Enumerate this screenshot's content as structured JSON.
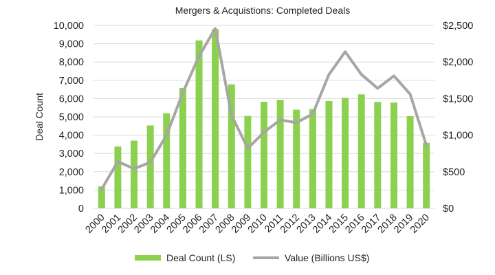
{
  "chart_data": {
    "type": "bar",
    "title": "Mergers & Acquistions: Completed Deals",
    "ylabel": "Deal Count",
    "y2label": "",
    "xlabel": "",
    "categories": [
      "2000",
      "2001",
      "2002",
      "2003",
      "2004",
      "2005",
      "2006",
      "2007",
      "2008",
      "2009",
      "2010",
      "2011",
      "2012",
      "2013",
      "2014",
      "2015",
      "2016",
      "2017",
      "2018",
      "2019",
      "2020"
    ],
    "ylim": [
      0,
      10000
    ],
    "yticks": [
      0,
      1000,
      2000,
      3000,
      4000,
      5000,
      6000,
      7000,
      8000,
      9000,
      10000
    ],
    "ytick_labels": [
      "0",
      "1,000",
      "2,000",
      "3,000",
      "4,000",
      "5,000",
      "6,000",
      "7,000",
      "8,000",
      "9,000",
      "10,000"
    ],
    "y2lim": [
      0,
      2500
    ],
    "y2ticks": [
      0,
      500,
      1000,
      1500,
      2000,
      2500
    ],
    "y2tick_labels": [
      "$0",
      "$500",
      "$1,000",
      "$1,500",
      "$2,000",
      "$2,500"
    ],
    "grid": true,
    "legend_position": "bottom",
    "series": [
      {
        "name": "Deal Count (LS)",
        "type": "bar",
        "axis": "left",
        "color": "#8cd04f",
        "values": [
          1200,
          3380,
          3700,
          4530,
          5200,
          6580,
          9180,
          9800,
          6780,
          5050,
          5820,
          5930,
          5390,
          5420,
          5870,
          6040,
          6230,
          5820,
          5780,
          5040,
          3580
        ]
      },
      {
        "name": "Value (Billions US$)",
        "type": "line",
        "axis": "right",
        "color": "#a6a6a6",
        "values": [
          260,
          640,
          540,
          630,
          1000,
          1580,
          2080,
          2460,
          1270,
          820,
          1040,
          1210,
          1170,
          1290,
          1830,
          2140,
          1830,
          1640,
          1810,
          1560,
          860
        ]
      }
    ]
  }
}
